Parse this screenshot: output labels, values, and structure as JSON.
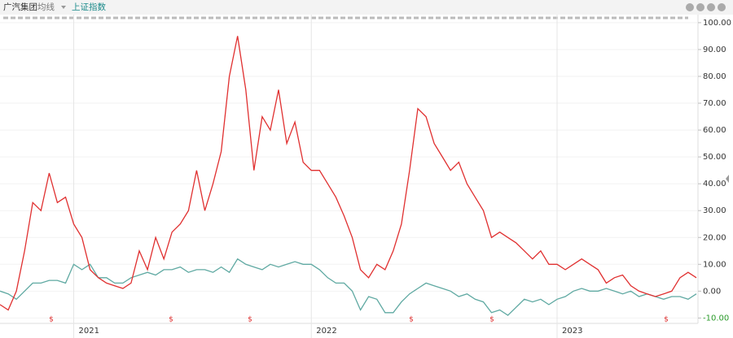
{
  "chart_data": {
    "type": "line",
    "title": "广汽集团",
    "indicator_menu": "均线",
    "compare_label": "上证指数",
    "event_marker": "$",
    "event_marker_color": "#e03030",
    "categories": [
      null,
      null,
      null,
      null,
      null,
      null,
      null,
      null,
      null,
      "2021",
      null,
      null,
      null,
      null,
      null,
      null,
      null,
      null,
      null,
      null,
      null,
      null,
      null,
      null,
      null,
      null,
      null,
      null,
      null,
      null,
      null,
      null,
      null,
      null,
      null,
      null,
      null,
      null,
      "2022",
      null,
      null,
      null,
      null,
      null,
      null,
      null,
      null,
      null,
      null,
      null,
      null,
      null,
      null,
      null,
      null,
      null,
      null,
      null,
      null,
      null,
      null,
      null,
      null,
      null,
      null,
      null,
      null,
      null,
      "2023",
      null,
      null,
      null,
      null,
      null,
      null,
      null,
      null,
      null,
      null,
      null,
      null,
      null,
      null,
      null,
      null,
      null
    ],
    "series": [
      {
        "name": "广汽集团",
        "color": "#e03030",
        "values": [
          -5,
          -7,
          0,
          15,
          33,
          30,
          44,
          33,
          35,
          25,
          20,
          8,
          5,
          3,
          2,
          1,
          3,
          15,
          8,
          20,
          12,
          22,
          25,
          30,
          45,
          30,
          40,
          52,
          80,
          95,
          75,
          45,
          65,
          60,
          75,
          55,
          63,
          48,
          45,
          45,
          40,
          35,
          28,
          20,
          8,
          5,
          10,
          8,
          15,
          25,
          45,
          68,
          65,
          55,
          50,
          45,
          48,
          40,
          35,
          30,
          20,
          22,
          20,
          18,
          15,
          12,
          15,
          10,
          10,
          8,
          10,
          12,
          10,
          8,
          3,
          5,
          6,
          2,
          0,
          -1,
          -2,
          -1,
          0,
          5,
          7,
          5
        ]
      },
      {
        "name": "上证指数",
        "color": "#5fa9a2",
        "values": [
          0,
          -1,
          -3,
          0,
          3,
          3,
          4,
          4,
          3,
          10,
          8,
          10,
          5,
          5,
          3,
          3,
          5,
          6,
          7,
          6,
          8,
          8,
          9,
          7,
          8,
          8,
          7,
          9,
          7,
          12,
          10,
          9,
          8,
          10,
          9,
          10,
          11,
          10,
          10,
          8,
          5,
          3,
          3,
          0,
          -7,
          -2,
          -3,
          -8,
          -8,
          -4,
          -1,
          1,
          3,
          2,
          1,
          0,
          -2,
          -1,
          -3,
          -4,
          -8,
          -7,
          -9,
          -6,
          -3,
          -4,
          -3,
          -5,
          -3,
          -2,
          0,
          1,
          0,
          0,
          1,
          0,
          -1,
          0,
          -2,
          -1,
          -2,
          -3,
          -2,
          -2,
          -3,
          -1
        ]
      }
    ],
    "ylim": [
      -12,
      103
    ],
    "yticks": [
      {
        "value": 100,
        "label": "100.00"
      },
      {
        "value": 90,
        "label": "90.00"
      },
      {
        "value": 80,
        "label": "80.00"
      },
      {
        "value": 70,
        "label": "70.00"
      },
      {
        "value": 60,
        "label": "60.00"
      },
      {
        "value": 50,
        "label": "50.00"
      },
      {
        "value": 40,
        "label": "40.00"
      },
      {
        "value": 30,
        "label": "30.00"
      },
      {
        "value": 20,
        "label": "20.00"
      },
      {
        "value": 10,
        "label": "10.00"
      },
      {
        "value": 0,
        "label": "0.00"
      },
      {
        "value": -10,
        "label": "-10.00"
      }
    ],
    "negative_tick_color": "#2a9a2a",
    "grid": true
  }
}
